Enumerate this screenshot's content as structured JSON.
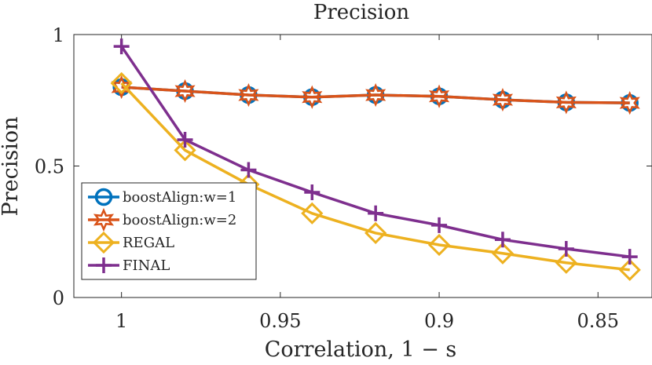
{
  "chart_data": {
    "type": "line",
    "title": "Precision",
    "xlabel": "Correlation, 1 − s",
    "ylabel": "Precision",
    "x": [
      1.0,
      0.98,
      0.96,
      0.94,
      0.92,
      0.9,
      0.88,
      0.86,
      0.84
    ],
    "xlim": [
      1.015,
      0.833
    ],
    "x_reversed": true,
    "ylim": [
      0,
      1
    ],
    "xticks": [
      1,
      0.95,
      0.9,
      0.85
    ],
    "xtick_labels": [
      "1",
      "0.95",
      "0.9",
      "0.85"
    ],
    "yticks": [
      0,
      0.5,
      1
    ],
    "ytick_labels": [
      "0",
      "0.5",
      "1"
    ],
    "grid": false,
    "legend_position": "lower-left",
    "series": [
      {
        "name": "boostAlign:w=1",
        "color": "#0072BD",
        "marker": "circle",
        "values": [
          0.8,
          0.785,
          0.77,
          0.762,
          0.77,
          0.765,
          0.752,
          0.742,
          0.74
        ]
      },
      {
        "name": "boostAlign:w=2",
        "color": "#D95319",
        "marker": "hexagram",
        "values": [
          0.8,
          0.785,
          0.77,
          0.762,
          0.77,
          0.765,
          0.752,
          0.742,
          0.74
        ]
      },
      {
        "name": "REGAL",
        "color": "#EDB120",
        "marker": "diamond",
        "values": [
          0.815,
          0.56,
          0.43,
          0.32,
          0.245,
          0.2,
          0.168,
          0.132,
          0.105
        ]
      },
      {
        "name": "FINAL",
        "color": "#7E2F8E",
        "marker": "plus",
        "values": [
          0.955,
          0.6,
          0.485,
          0.4,
          0.32,
          0.275,
          0.22,
          0.185,
          0.155
        ]
      }
    ]
  }
}
